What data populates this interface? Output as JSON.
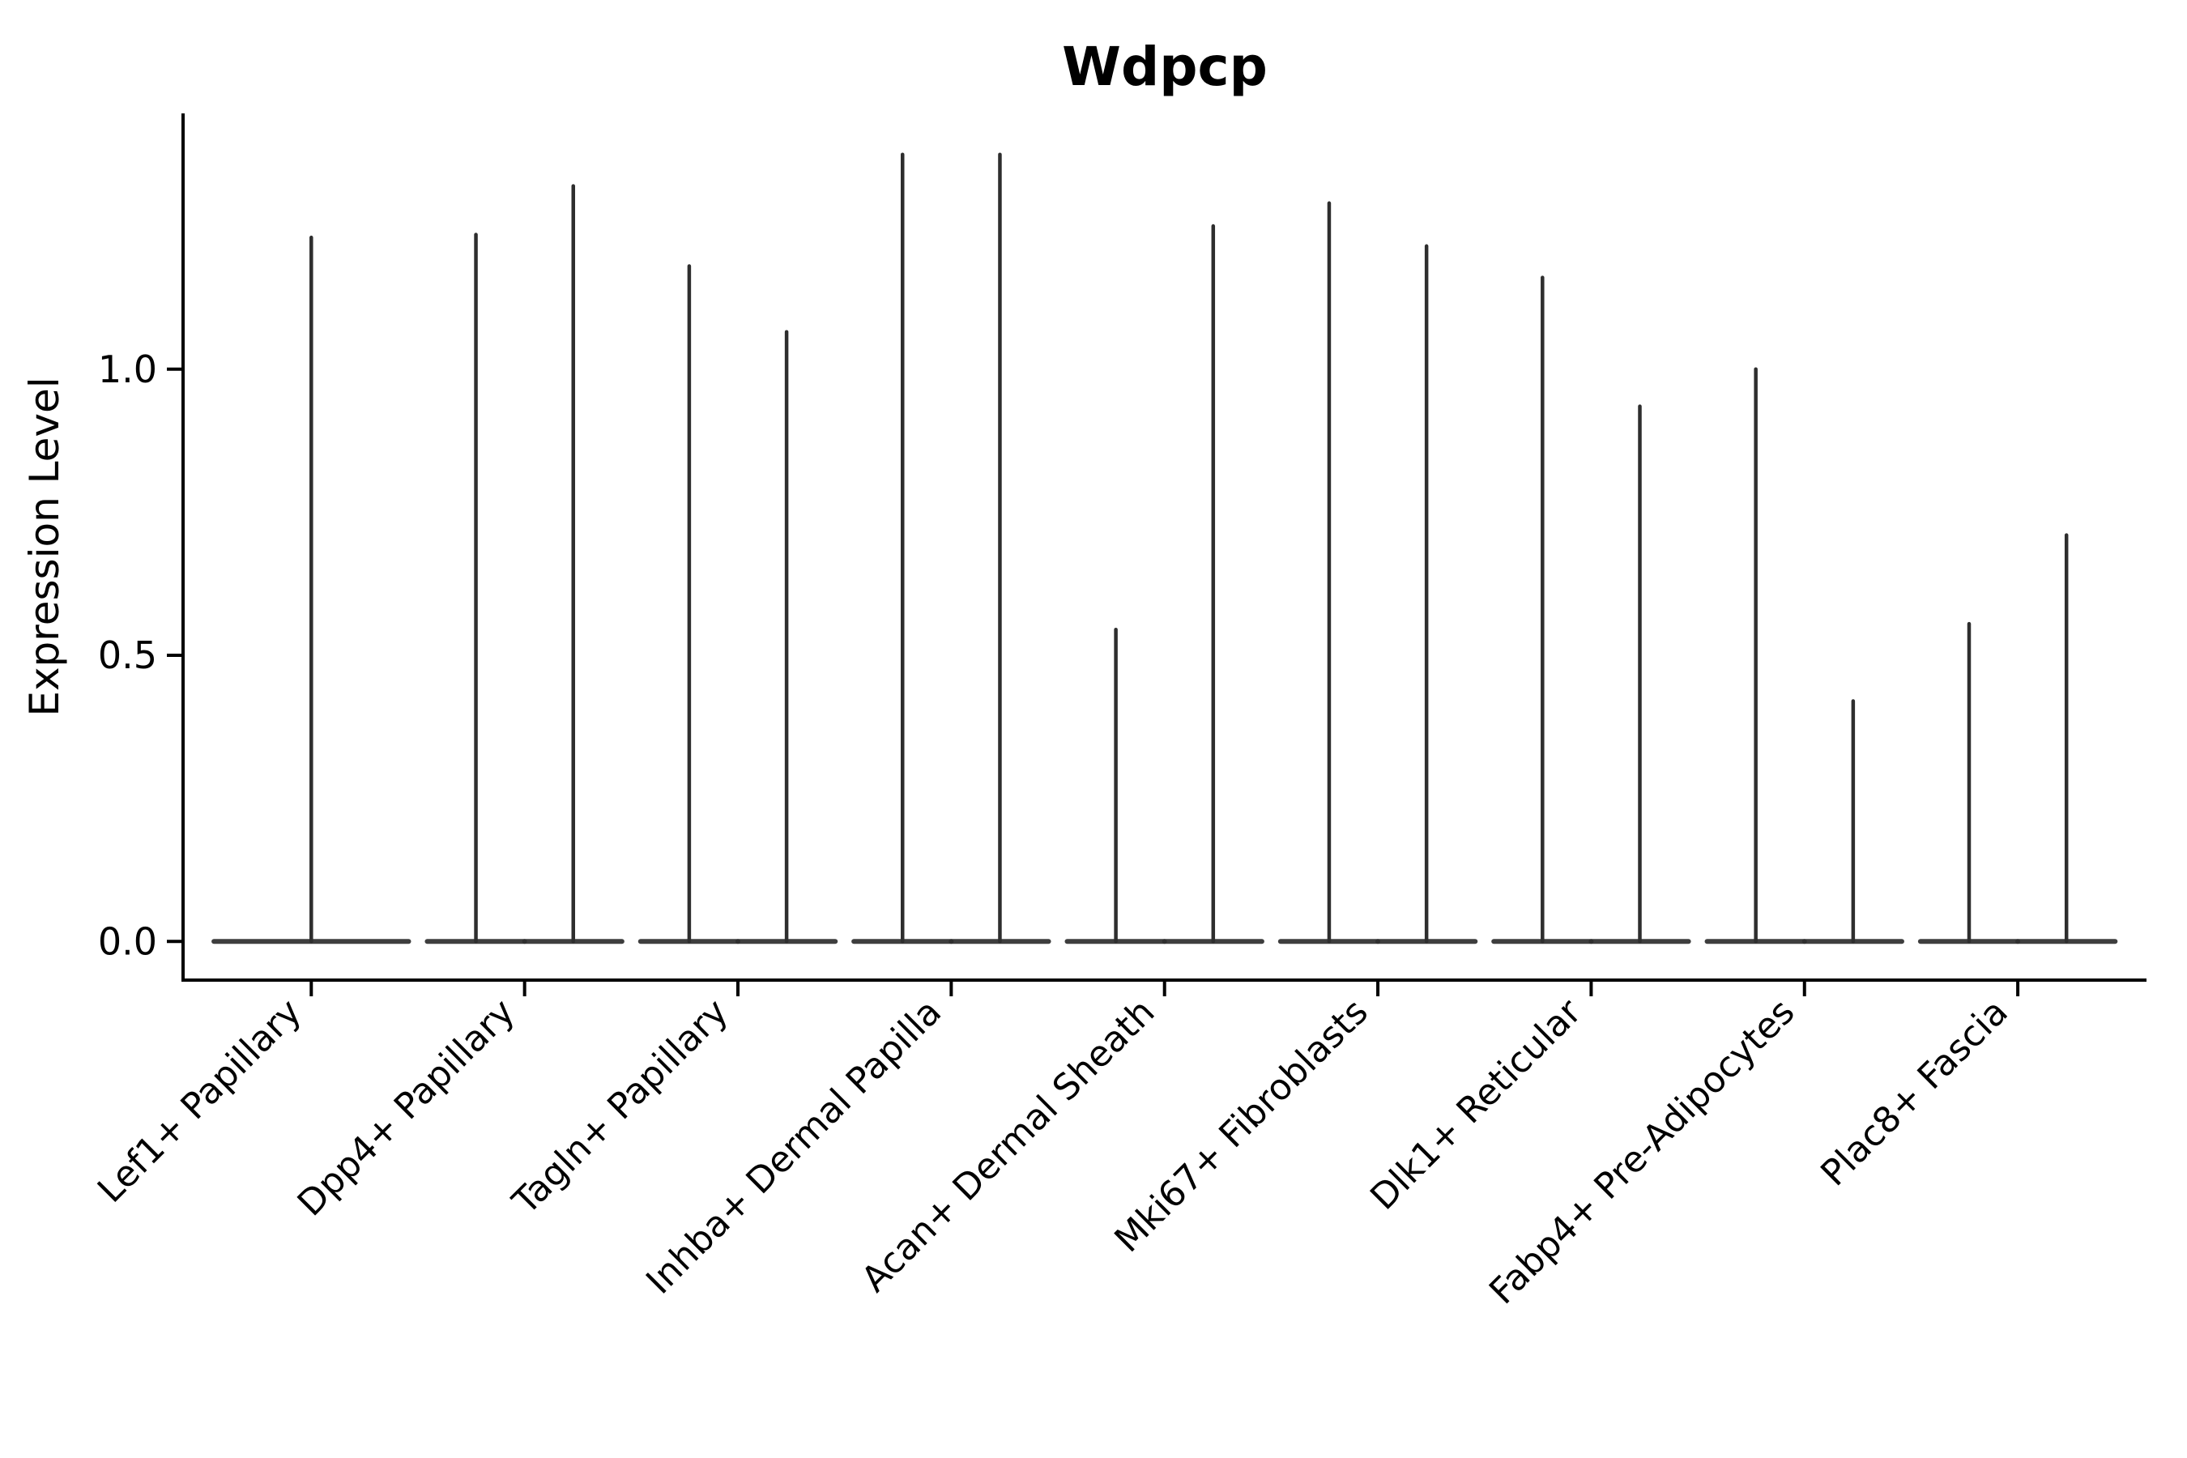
{
  "title": "Wdpcp",
  "chart_data": {
    "type": "violin",
    "title": "Wdpcp",
    "xlabel": "",
    "ylabel": "Expression Level",
    "ylim": [
      -0.07,
      1.45
    ],
    "yticks": [
      {
        "value": 0.0,
        "label": "0.0"
      },
      {
        "value": 0.5,
        "label": "0.5"
      },
      {
        "value": 1.0,
        "label": "1.0"
      }
    ],
    "grid": false,
    "legend_position": "none",
    "violin_color": "#2e2e2e",
    "axis_color": "#000000",
    "background_color": "#ffffff",
    "categories": [
      "Lef1+ Papillary",
      "Dpp4+ Papillary",
      "Tagln+ Papillary",
      "Inhba+ Dermal Papilla",
      "Acan+ Dermal Sheath",
      "Mki67+ Fibroblasts",
      "Dlk1+ Reticular",
      "Fabp4+ Pre-Adipocytes",
      "Plac8+ Fascia"
    ],
    "groups": [
      {
        "category": "Lef1+ Papillary",
        "violins": [
          {
            "max": 1.23
          }
        ]
      },
      {
        "category": "Dpp4+ Papillary",
        "violins": [
          {
            "max": 1.235
          },
          {
            "max": 1.32
          }
        ]
      },
      {
        "category": "Tagln+ Papillary",
        "violins": [
          {
            "max": 1.18
          },
          {
            "max": 1.065
          }
        ]
      },
      {
        "category": "Inhba+ Dermal Papilla",
        "violins": [
          {
            "max": 1.375
          },
          {
            "max": 1.375
          }
        ]
      },
      {
        "category": "Acan+ Dermal Sheath",
        "violins": [
          {
            "max": 0.545
          },
          {
            "max": 1.25
          }
        ]
      },
      {
        "category": "Mki67+ Fibroblasts",
        "violins": [
          {
            "max": 1.29
          },
          {
            "max": 1.215
          }
        ]
      },
      {
        "category": "Dlk1+ Reticular",
        "violins": [
          {
            "max": 1.16
          },
          {
            "max": 0.935
          }
        ]
      },
      {
        "category": "Fabp4+ Pre-Adipocytes",
        "violins": [
          {
            "max": 1.0
          },
          {
            "max": 0.42
          }
        ]
      },
      {
        "category": "Plac8+ Fascia",
        "violins": [
          {
            "max": 0.555
          },
          {
            "max": 0.71
          }
        ]
      }
    ],
    "description": "Violin plot of expression level per fibroblast cell-type cluster; each violin is a flat dense body at 0 with a thin spike rising to the cluster maximum."
  }
}
